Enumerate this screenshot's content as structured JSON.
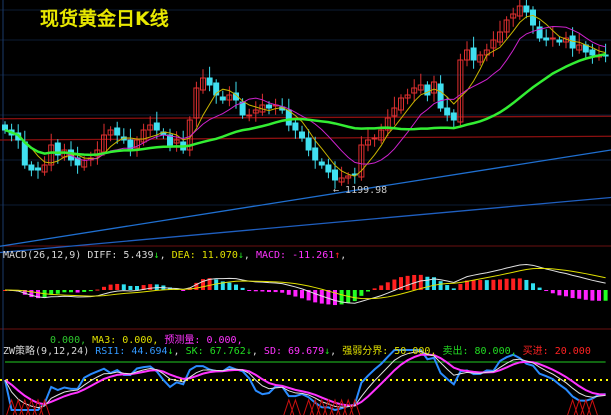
{
  "title": "现货黄金日K线",
  "chart_data": [
    {
      "type": "candlestick",
      "title": "现货黄金日K线",
      "close": [
        1222,
        1220,
        1218,
        1208,
        1206,
        1206,
        1208,
        1216,
        1212,
        1214,
        1210,
        1208,
        1210,
        1210.8,
        1214,
        1220,
        1222,
        1220,
        1218,
        1214,
        1218,
        1222,
        1224,
        1222,
        1220,
        1216,
        1218,
        1214,
        1226,
        1238.8,
        1242.8,
        1240,
        1236,
        1234,
        1236,
        1234,
        1228,
        1228,
        1230,
        1232,
        1230.8,
        1232,
        1230,
        1224,
        1222,
        1218.8,
        1214,
        1210,
        1208,
        1205.2,
        1202,
        1202.8,
        1203.6,
        1204,
        1216,
        1218,
        1218.8,
        1222,
        1226.8,
        1230.8,
        1234.8,
        1236,
        1238.8,
        1240,
        1236,
        1241.2,
        1230.8,
        1228,
        1226,
        1250,
        1254,
        1250,
        1252,
        1254,
        1258,
        1261.2,
        1266,
        1268.4,
        1271.6,
        1269.2,
        1264,
        1258.8,
        1258,
        1258.8,
        1257.2,
        1258.8,
        1254.8,
        1256,
        1253.2,
        1252,
        1252,
        1251.6
      ],
      "low_label": "1199.98",
      "long_ma": [
        {
          "color": "#8b1010",
          "values": [
            1226.5,
            1227.5
          ]
        },
        {
          "color": "#8b1010",
          "values": [
            1218,
            1219.5
          ]
        },
        {
          "color": "#1f6fd0",
          "values": [
            1175.5,
            1214
          ]
        },
        {
          "color": "#1f5fc0",
          "values": [
            1173,
            1195
          ]
        }
      ],
      "colors": {
        "up": "#e03030",
        "down": "#40e0f0",
        "ma_short": "#c8b400",
        "ma_mid": "#cc22cc",
        "ma_long": "#33ee33"
      }
    },
    {
      "type": "bar",
      "title": "MACD(26,12,9)",
      "values_derived_from": "close"
    },
    {
      "type": "line",
      "title": "ZW策略(9,12,24)"
    }
  ],
  "macd": {
    "name": "MACD(26,12,9)",
    "diff_label": "DIFF: 5.439",
    "dea_label": "DEA: 11.070",
    "macd_label": "MACD: -11.261",
    "down_arrow": "↓",
    "up_arrow": "↑",
    "sep": ","
  },
  "zw": {
    "line1_a": "0.000,",
    "ma3": "MA3: 0.000,",
    "forecast": "预测量: 0.000,",
    "name": "ZW策略(9,12,24)",
    "rsi1": "RSI1: 44.694",
    "sk": "SK: 67.762",
    "sd": "SD: 69.679",
    "boundary": "强弱分界: 50.000,",
    "sell": "卖出: 80.000,",
    "buy": "买进: 20.000",
    "down_arrow": "↓",
    "sep": ","
  }
}
